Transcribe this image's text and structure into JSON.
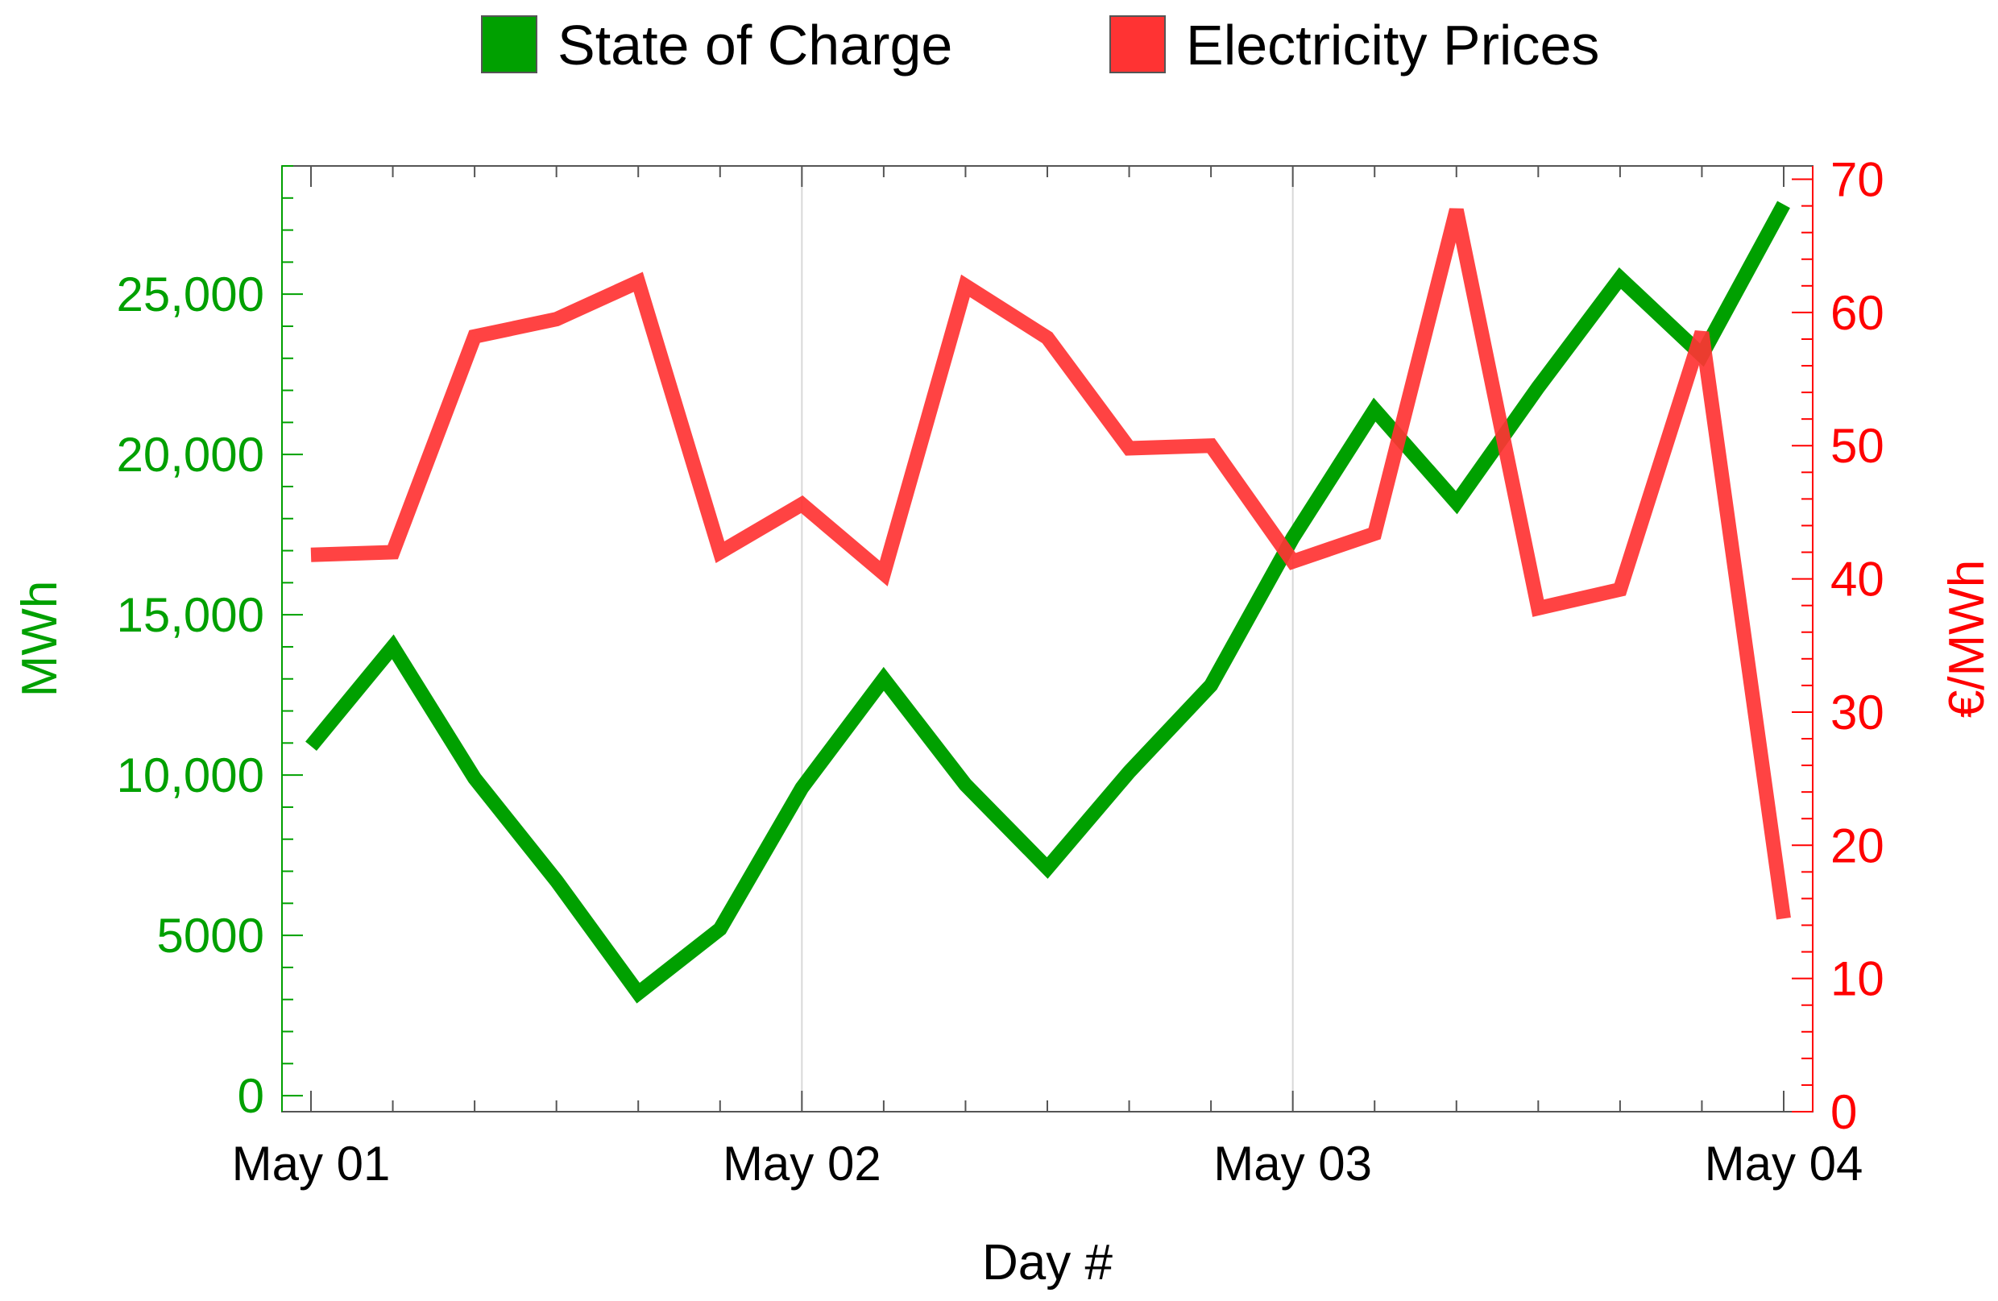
{
  "chart_data": {
    "type": "line",
    "xlabel": "Day #",
    "x_tick_labels": [
      "May 01",
      "May 02",
      "May 03",
      "May 04"
    ],
    "x_points_per_day": 6,
    "x": [
      "May 01 00:00",
      "May 01 04:00",
      "May 01 08:00",
      "May 01 12:00",
      "May 01 16:00",
      "May 01 20:00",
      "May 02 00:00",
      "May 02 04:00",
      "May 02 08:00",
      "May 02 12:00",
      "May 02 16:00",
      "May 02 20:00",
      "May 03 00:00",
      "May 03 04:00",
      "May 03 08:00",
      "May 03 12:00",
      "May 03 16:00",
      "May 03 20:00",
      "May 04 00:00"
    ],
    "left_axis": {
      "label": "MWh",
      "color": "#00a000",
      "ylim": [
        -500,
        29000
      ],
      "ticks": [
        0,
        5000,
        10000,
        15000,
        20000,
        25000
      ],
      "tick_labels": [
        "0",
        "5000",
        "10,000",
        "15,000",
        "20,000",
        "25,000"
      ]
    },
    "right_axis": {
      "label": "€/MWh",
      "color": "#ff0000",
      "ylim": [
        0,
        71
      ],
      "ticks": [
        0,
        10,
        20,
        30,
        40,
        50,
        60,
        70
      ],
      "tick_labels": [
        "0",
        "10",
        "20",
        "30",
        "40",
        "50",
        "60",
        "70"
      ]
    },
    "series": [
      {
        "name": "State of Charge",
        "axis": "left",
        "color": "#00a000",
        "values": [
          10900,
          14000,
          9900,
          6700,
          3200,
          5200,
          9600,
          13000,
          9700,
          7100,
          10100,
          12800,
          17400,
          21400,
          18500,
          22100,
          25500,
          23100,
          27800
        ]
      },
      {
        "name": "Electricity Prices",
        "axis": "right",
        "color": "#ff3333",
        "values": [
          41.8,
          42.0,
          58.2,
          59.5,
          62.3,
          42.0,
          45.6,
          40.4,
          62.0,
          58.1,
          49.8,
          50.0,
          41.3,
          43.4,
          67.7,
          37.8,
          39.2,
          58.5,
          14.5
        ]
      }
    ],
    "grid": "vertical at day boundaries",
    "legend": "top-center"
  }
}
